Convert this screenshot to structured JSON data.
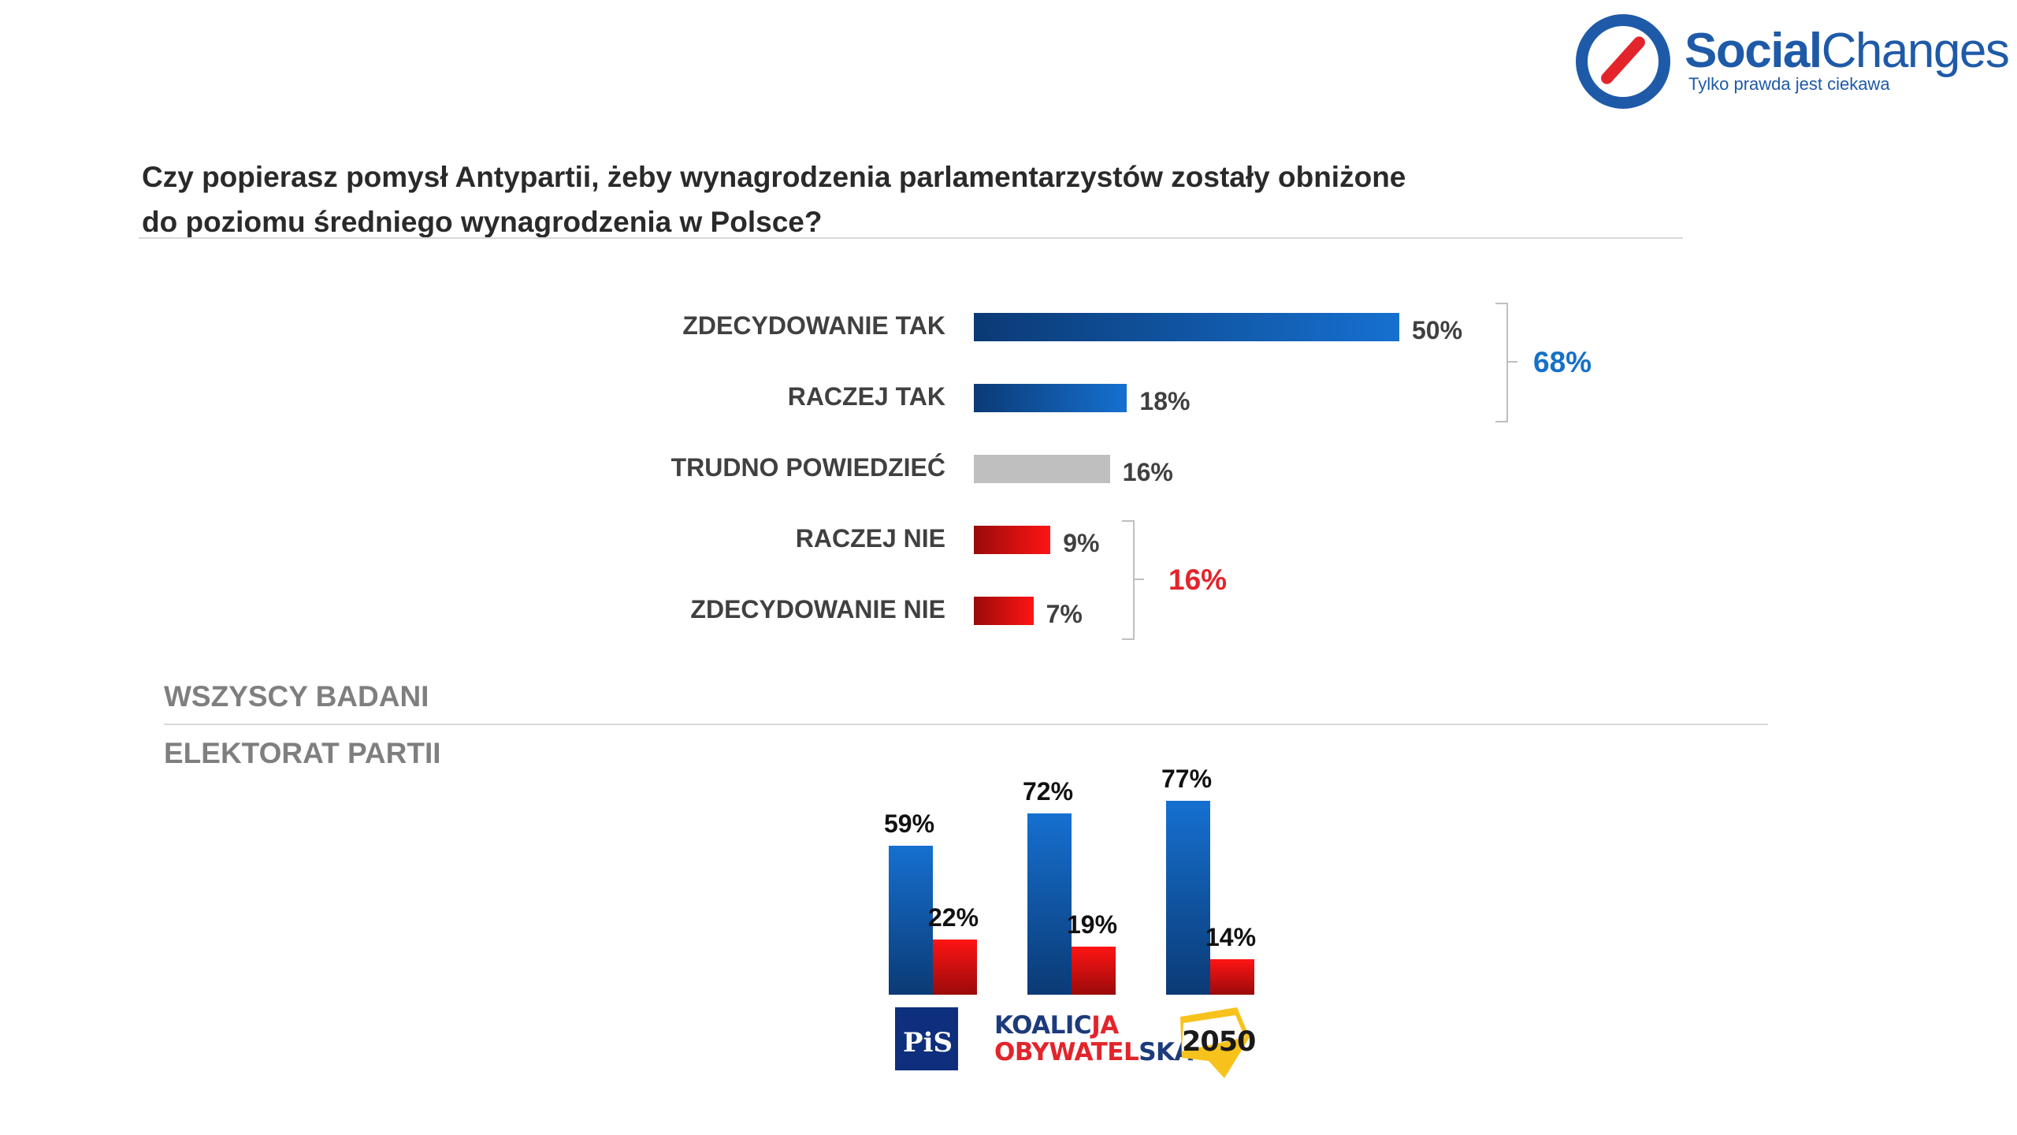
{
  "brand": {
    "name_bold": "Social",
    "name_light": "Changes",
    "tagline": "Tylko prawda jest ciekawa"
  },
  "question_line1": "Czy popierasz pomysł Antypartii, żeby wynagrodzenia parlamentarzystów zostały obniżone",
  "question_line2": "do poziomu średniego wynagrodzenia w Polsce?",
  "colors": {
    "blue": "#1670d0",
    "dark_blue": "#0b3a75",
    "red": "#e3242b",
    "grey": "#bfbfbf",
    "sum_blue": "#1670c8"
  },
  "chart_data": [
    {
      "type": "bar",
      "orientation": "horizontal",
      "categories": [
        "ZDECYDOWANIE TAK",
        "RACZEJ TAK",
        "TRUDNO POWIEDZIEĆ",
        "RACZEJ NIE",
        "ZDECYDOWANIE NIE"
      ],
      "values": [
        50,
        18,
        16,
        9,
        7
      ],
      "value_labels": [
        "50%",
        "18%",
        "16%",
        "9%",
        "7%"
      ],
      "totals": [
        {
          "label": "68%",
          "value": 68,
          "covers": [
            "ZDECYDOWANIE TAK",
            "RACZEJ TAK"
          ]
        },
        {
          "label": "16%",
          "value": 16,
          "covers": [
            "RACZEJ NIE",
            "ZDECYDOWANIE NIE"
          ]
        }
      ],
      "section_label": "WSZYSCY BADANI"
    },
    {
      "type": "bar",
      "orientation": "vertical",
      "section_label": "ELEKTORAT PARTII",
      "categories": [
        "PiS",
        "KOALICJA OBYWATELSKA",
        "2050"
      ],
      "series": [
        {
          "values": [
            59,
            72,
            77
          ],
          "labels": [
            "59%",
            "72%",
            "77%"
          ]
        },
        {
          "values": [
            22,
            19,
            14
          ],
          "labels": [
            "22%",
            "19%",
            "14%"
          ]
        }
      ]
    }
  ],
  "party_logos": {
    "pis": "PiS",
    "ko_line1_navy": "KOALIC",
    "ko_line1_red": "JA",
    "ko_line2_red": "OBYWATEL",
    "ko_line2_navy": "SKA",
    "p2050": "2050"
  }
}
